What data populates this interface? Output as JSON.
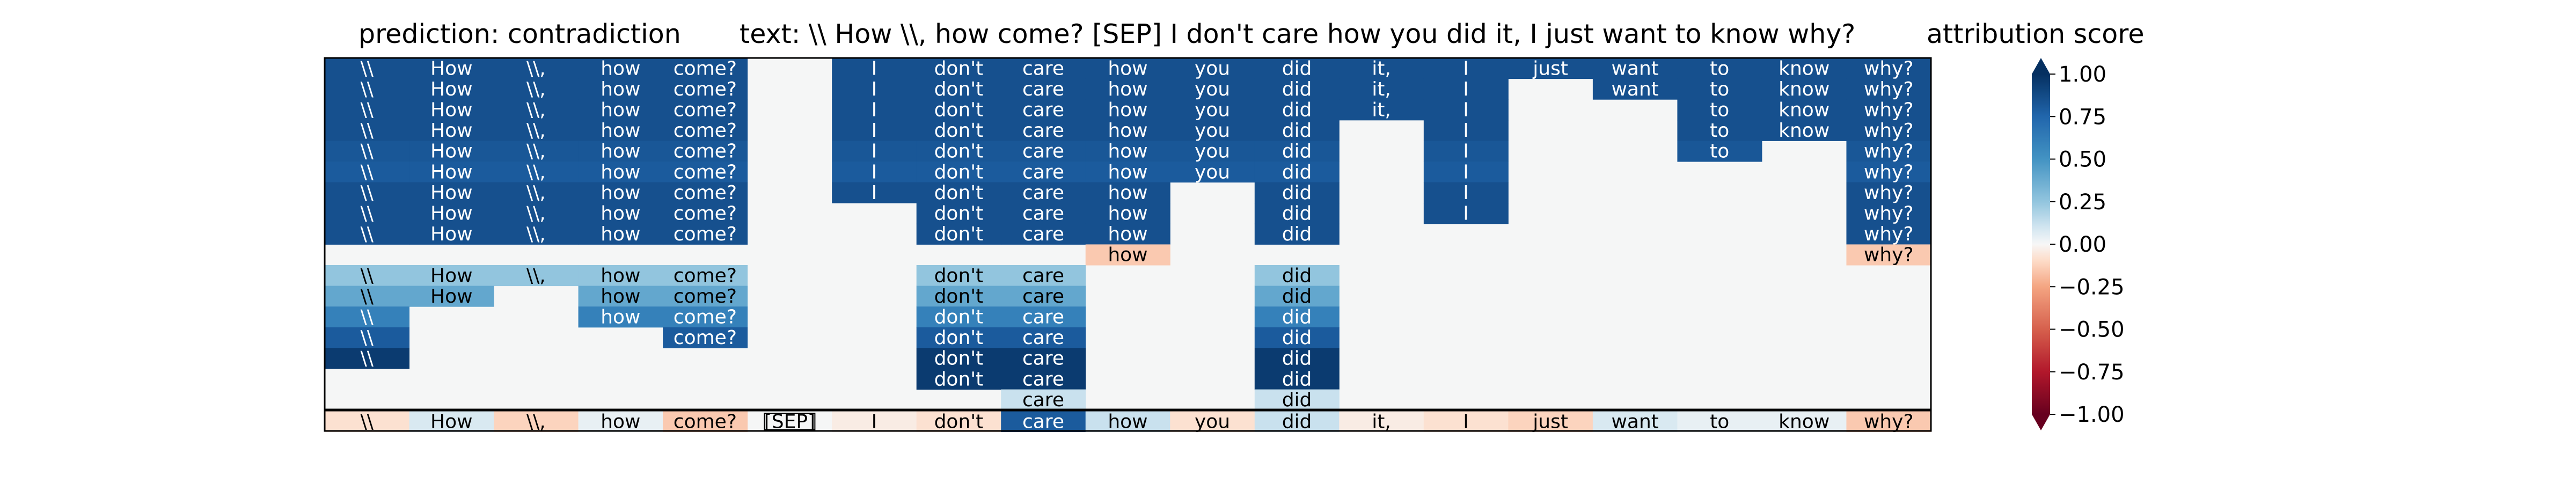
{
  "chart_data": {
    "type": "heatmap",
    "titles": {
      "prediction": "prediction:  contradiction",
      "text": "text:  \\\\ How \\\\, how come? [SEP] I don't care how you did it, I just want to know why?",
      "colorbar": "attribution score"
    },
    "tokens": [
      "\\\\",
      "How",
      "\\\\,",
      "how",
      "come?",
      "[SEP]",
      "I",
      "don't",
      "care",
      "how",
      "you",
      "did",
      "it,",
      "I",
      "just",
      "want",
      "to",
      "know",
      "why?"
    ],
    "colormap": "RdBu",
    "vmin": -1.0,
    "vmax": 1.0,
    "colorbar_ticks": [
      -1.0,
      -0.75,
      -0.5,
      -0.25,
      0.0,
      0.25,
      0.5,
      0.75,
      1.0
    ],
    "colorbar_tick_labels": [
      "−1.00",
      "−0.75",
      "−0.50",
      "−0.25",
      "0.00",
      "0.25",
      "0.50",
      "0.75",
      "1.00"
    ],
    "rows": [
      [
        0.85,
        0.85,
        0.85,
        0.85,
        0.85,
        0.0,
        0.85,
        0.85,
        0.85,
        0.85,
        0.85,
        0.85,
        0.85,
        0.85,
        0.85,
        0.85,
        0.85,
        0.85,
        0.85
      ],
      [
        0.85,
        0.85,
        0.85,
        0.85,
        0.85,
        0.0,
        0.85,
        0.85,
        0.85,
        0.85,
        0.85,
        0.85,
        0.85,
        0.85,
        0.0,
        0.85,
        0.85,
        0.85,
        0.85
      ],
      [
        0.85,
        0.85,
        0.85,
        0.85,
        0.85,
        0.0,
        0.85,
        0.85,
        0.85,
        0.85,
        0.85,
        0.85,
        0.85,
        0.85,
        0.0,
        0.0,
        0.85,
        0.85,
        0.85
      ],
      [
        0.85,
        0.85,
        0.85,
        0.85,
        0.85,
        0.0,
        0.85,
        0.85,
        0.85,
        0.85,
        0.85,
        0.85,
        0.0,
        0.85,
        0.0,
        0.0,
        0.85,
        0.85,
        0.85
      ],
      [
        0.82,
        0.82,
        0.82,
        0.82,
        0.82,
        0.0,
        0.82,
        0.82,
        0.82,
        0.82,
        0.82,
        0.82,
        0.0,
        0.82,
        0.0,
        0.0,
        0.82,
        0.0,
        0.82
      ],
      [
        0.8,
        0.8,
        0.8,
        0.8,
        0.8,
        0.0,
        0.8,
        0.8,
        0.8,
        0.8,
        0.8,
        0.8,
        0.0,
        0.8,
        0.0,
        0.0,
        0.0,
        0.0,
        0.8
      ],
      [
        0.85,
        0.85,
        0.85,
        0.85,
        0.85,
        0.0,
        0.85,
        0.85,
        0.85,
        0.85,
        0.0,
        0.85,
        0.0,
        0.85,
        0.0,
        0.0,
        0.0,
        0.0,
        0.85
      ],
      [
        0.85,
        0.85,
        0.85,
        0.85,
        0.85,
        0.0,
        0.0,
        0.85,
        0.85,
        0.85,
        0.0,
        0.85,
        0.0,
        0.85,
        0.0,
        0.0,
        0.0,
        0.0,
        0.85
      ],
      [
        0.85,
        0.85,
        0.85,
        0.85,
        0.85,
        0.0,
        0.0,
        0.85,
        0.85,
        0.85,
        0.0,
        0.85,
        0.0,
        0.0,
        0.0,
        0.0,
        0.0,
        0.0,
        0.85
      ],
      [
        0.0,
        0.0,
        0.0,
        0.0,
        0.0,
        0.0,
        0.0,
        0.0,
        0.0,
        -0.15,
        0.0,
        0.0,
        0.0,
        0.0,
        0.0,
        0.0,
        0.0,
        0.0,
        -0.15
      ],
      [
        0.25,
        0.25,
        0.25,
        0.25,
        0.25,
        0.0,
        0.0,
        0.25,
        0.25,
        0.0,
        0.0,
        0.25,
        0.0,
        0.0,
        0.0,
        0.0,
        0.0,
        0.0,
        0.0
      ],
      [
        0.4,
        0.4,
        0.0,
        0.4,
        0.4,
        0.0,
        0.0,
        0.4,
        0.4,
        0.0,
        0.0,
        0.4,
        0.0,
        0.0,
        0.0,
        0.0,
        0.0,
        0.0,
        0.0
      ],
      [
        0.6,
        0.0,
        0.0,
        0.6,
        0.6,
        0.0,
        0.0,
        0.6,
        0.6,
        0.0,
        0.0,
        0.6,
        0.0,
        0.0,
        0.0,
        0.0,
        0.0,
        0.0,
        0.0
      ],
      [
        0.8,
        0.0,
        0.0,
        0.0,
        0.8,
        0.0,
        0.0,
        0.8,
        0.8,
        0.0,
        0.0,
        0.8,
        0.0,
        0.0,
        0.0,
        0.0,
        0.0,
        0.0,
        0.0
      ],
      [
        0.95,
        0.0,
        0.0,
        0.0,
        0.0,
        0.0,
        0.0,
        0.95,
        0.95,
        0.0,
        0.0,
        0.95,
        0.0,
        0.0,
        0.0,
        0.0,
        0.0,
        0.0,
        0.0
      ],
      [
        0.0,
        0.0,
        0.0,
        0.0,
        0.0,
        0.0,
        0.0,
        0.95,
        0.95,
        0.0,
        0.0,
        0.95,
        0.0,
        0.0,
        0.0,
        0.0,
        0.0,
        0.0,
        0.0
      ],
      [
        0.0,
        0.0,
        0.0,
        0.0,
        0.0,
        0.0,
        0.0,
        0.0,
        0.12,
        0.0,
        0.0,
        0.12,
        0.0,
        0.0,
        0.0,
        0.0,
        0.0,
        0.0,
        0.0
      ]
    ],
    "bottom_row": [
      -0.08,
      0.08,
      -0.12,
      0.04,
      -0.15,
      0.0,
      -0.04,
      -0.08,
      0.8,
      0.12,
      -0.08,
      0.12,
      -0.04,
      -0.08,
      -0.12,
      0.08,
      0.04,
      0.04,
      -0.15
    ]
  }
}
